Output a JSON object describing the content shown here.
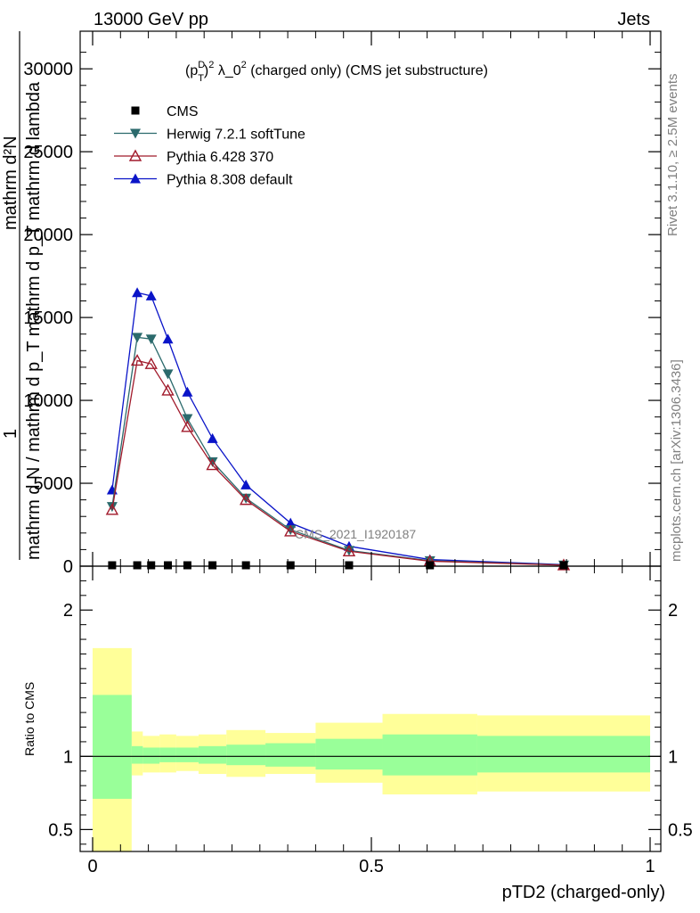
{
  "header": {
    "left": "13000 GeV pp",
    "right": "Jets"
  },
  "side_labels": {
    "rivet": "Rivet 3.1.10, ≥ 2.5M events",
    "mcplots": "mcplots.cern.ch [arXiv:1306.3436]"
  },
  "watermark": "CMS_2021_I1920187",
  "chart_data": [
    {
      "type": "line",
      "title_parts": {
        "open": "(p",
        "sup": "D",
        "sub": "T",
        "close": ")",
        "sup2": "2",
        "mid": " λ_0",
        "sup3": "2",
        "rest": " (charged only) (CMS jet substructure)"
      },
      "ylabel_parts": {
        "numer_one": "1",
        "numer_frac": "mathrm d²N",
        "denom": "mathrm d N / mathrm d p_T mathrm d p_T mathrm d lambda"
      },
      "xlim": [
        0,
        1
      ],
      "ylim": [
        0,
        32000
      ],
      "y_ticks": [
        {
          "value": 0,
          "label": "0"
        },
        {
          "value": 5000,
          "label": "5000"
        },
        {
          "value": 10000,
          "label": "10000"
        },
        {
          "value": 15000,
          "label": "15000"
        },
        {
          "value": 20000,
          "label": "20000"
        },
        {
          "value": 25000,
          "label": "25000"
        },
        {
          "value": 30000,
          "label": "30000"
        }
      ],
      "legend_position": "top-left",
      "x": [
        0.035,
        0.08,
        0.105,
        0.135,
        0.17,
        0.215,
        0.275,
        0.355,
        0.46,
        0.605,
        0.845
      ],
      "series": [
        {
          "name": "CMS",
          "color": "#000000",
          "marker": "square",
          "values": [
            40,
            40,
            40,
            40,
            40,
            40,
            40,
            40,
            40,
            40,
            40
          ]
        },
        {
          "name": "Herwig 7.2.1 softTune",
          "color": "#2b6a6c",
          "marker": "triangle-down",
          "values": [
            3600,
            13800,
            13700,
            11600,
            8900,
            6300,
            4100,
            2200,
            950,
            330,
            70
          ]
        },
        {
          "name": "Pythia 6.428 370",
          "color": "#a11a2b",
          "marker": "triangle-up-open",
          "values": [
            3400,
            12400,
            12200,
            10600,
            8400,
            6100,
            4000,
            2100,
            900,
            300,
            60
          ]
        },
        {
          "name": "Pythia 8.308 default",
          "color": "#0a14c8",
          "marker": "triangle-up",
          "values": [
            4600,
            16500,
            16300,
            13700,
            10500,
            7700,
            4900,
            2600,
            1200,
            400,
            90
          ]
        }
      ]
    },
    {
      "type": "area",
      "ylabel": "Ratio to CMS",
      "xlabel": "pTD2 (charged-only)",
      "xlim": [
        0,
        1
      ],
      "ylim": [
        0.35,
        2.3
      ],
      "y_ticks": [
        {
          "value": 0.5,
          "label": "0.5"
        },
        {
          "value": 1,
          "label": "1"
        },
        {
          "value": 2,
          "label": "2"
        }
      ],
      "x_ticks": [
        {
          "value": 0,
          "label": "0"
        },
        {
          "value": 0.5,
          "label": "0.5"
        },
        {
          "value": 1,
          "label": "1"
        }
      ],
      "bin_edges": [
        0.0,
        0.07,
        0.09,
        0.12,
        0.15,
        0.19,
        0.24,
        0.31,
        0.4,
        0.52,
        0.69,
        1.0
      ],
      "band_inner": {
        "color": "#99ff99",
        "low": [
          0.71,
          0.95,
          0.95,
          0.96,
          0.96,
          0.95,
          0.94,
          0.93,
          0.91,
          0.87,
          0.89
        ],
        "high": [
          1.42,
          1.07,
          1.06,
          1.06,
          1.06,
          1.07,
          1.08,
          1.09,
          1.12,
          1.15,
          1.14
        ]
      },
      "band_outer": {
        "color": "#ffff99",
        "low": [
          0.35,
          0.87,
          0.89,
          0.89,
          0.9,
          0.88,
          0.86,
          0.88,
          0.82,
          0.74,
          0.76
        ],
        "high": [
          1.74,
          1.17,
          1.14,
          1.15,
          1.14,
          1.15,
          1.18,
          1.16,
          1.23,
          1.29,
          1.28
        ]
      },
      "reference": 1
    }
  ]
}
